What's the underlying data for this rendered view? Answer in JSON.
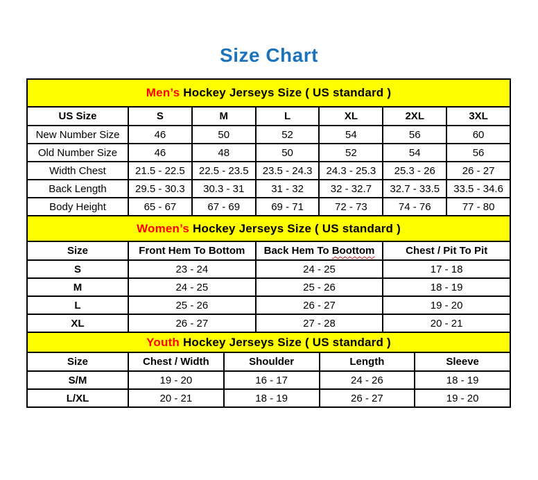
{
  "page": {
    "title": "Size Chart",
    "title_color": "#1b73be"
  },
  "colors": {
    "section_header_bg": "#ffff00",
    "section_accent": "#ff0000",
    "border": "#000000",
    "spellcheck_underline": "#cc2222"
  },
  "tables": [
    {
      "id": "mens",
      "header": {
        "accent": "Men’s",
        "rest": " Hockey Jerseys Size ( US standard )"
      },
      "bold_row_labels": false,
      "columns": [
        "US Size",
        "S",
        "M",
        "L",
        "XL",
        "2XL",
        "3XL"
      ],
      "rows": [
        {
          "label": "New Number Size",
          "values": [
            "46",
            "50",
            "52",
            "54",
            "56",
            "60"
          ]
        },
        {
          "label": "Old Number Size",
          "values": [
            "46",
            "48",
            "50",
            "52",
            "54",
            "56"
          ]
        },
        {
          "label": "Width Chest",
          "values": [
            "21.5 - 22.5",
            "22.5 - 23.5",
            "23.5 - 24.3",
            "24.3 - 25.3",
            "25.3 - 26",
            "26 - 27"
          ]
        },
        {
          "label": "Back Length",
          "values": [
            "29.5 - 30.3",
            "30.3 - 31",
            "31 - 32",
            "32 - 32.7",
            "32.7 - 33.5",
            "33.5 - 34.6"
          ]
        },
        {
          "label": "Body Height",
          "values": [
            "65 - 67",
            "67 - 69",
            "69 - 71",
            "72 - 73",
            "74 - 76",
            "77 - 80"
          ]
        }
      ]
    },
    {
      "id": "womens",
      "header": {
        "accent": "Women’s",
        "rest": " Hockey Jerseys Size ( US standard )"
      },
      "bold_row_labels": true,
      "columns": [
        "Size",
        "Front Hem To Bottom",
        "Back Hem To Boottom",
        "Chest / Pit To Pit"
      ],
      "spellcheck_underline": {
        "column_index": 2,
        "word": "Boottom"
      },
      "rows": [
        {
          "label": "S",
          "values": [
            "23 - 24",
            "24 - 25",
            "17 - 18"
          ]
        },
        {
          "label": "M",
          "values": [
            "24 - 25",
            "25 - 26",
            "18 - 19"
          ]
        },
        {
          "label": "L",
          "values": [
            "25 - 26",
            "26 - 27",
            "19 - 20"
          ]
        },
        {
          "label": "XL",
          "values": [
            "26 - 27",
            "27 - 28",
            "20 - 21"
          ]
        }
      ]
    },
    {
      "id": "youth",
      "header": {
        "accent": "Youth",
        "rest": " Hockey Jerseys Size ( US standard )"
      },
      "bold_row_labels": true,
      "columns": [
        "Size",
        "Chest / Width",
        "Shoulder",
        "Length",
        "Sleeve"
      ],
      "rows": [
        {
          "label": "S/M",
          "values": [
            "19 - 20",
            "16 - 17",
            "24 - 26",
            "18 - 19"
          ]
        },
        {
          "label": "L/XL",
          "values": [
            "20 - 21",
            "18 - 19",
            "26 - 27",
            "19 - 20"
          ]
        }
      ]
    }
  ]
}
